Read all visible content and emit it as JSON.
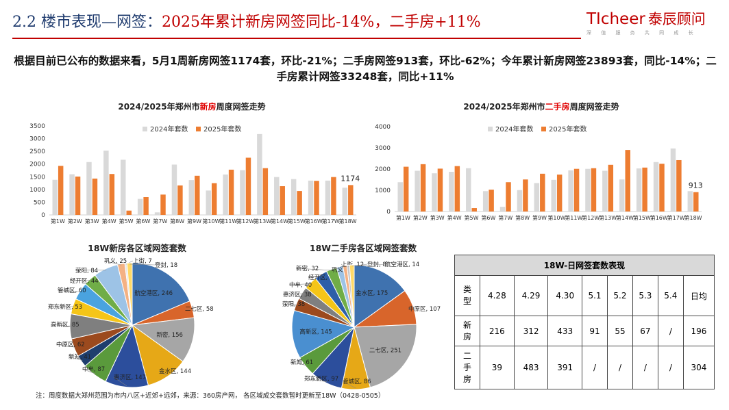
{
  "header": {
    "title_prefix": "2.2 楼市表现—网签：",
    "title_highlight": "2025年累计新房网签同比-14%，二手房+11%"
  },
  "logo": {
    "brand_latin": "TIcheer",
    "brand_cn": "泰辰顾问",
    "tagline": "深 值 服 务 共 同 成 长"
  },
  "summary": "根据目前已公布的数据来看，5月1周新房网签1174套，环比-21%；二手房网签913套，环比-62%；今年累计新房网签23893套，同比-14%；二手房累计网签33248套，同比+11%",
  "colors": {
    "series_2024": "#d9d9d9",
    "series_2025": "#ed7d31",
    "title_red": "#c00000"
  },
  "chart_data": [
    {
      "type": "bar",
      "title_prefix": "2024/2025年郑州市",
      "title_highlight": "新房",
      "title_suffix": "周度网签走势",
      "categories": [
        "第1W",
        "第2W",
        "第3W",
        "第4W",
        "第5W",
        "第6W",
        "第7W",
        "第8W",
        "第9W",
        "第10W",
        "第11W",
        "第12W",
        "第13W",
        "第14W",
        "第15W",
        "第16W",
        "第17W",
        "第18W"
      ],
      "series": [
        {
          "name": "2024年套数",
          "color": "#d9d9d9",
          "values": [
            1380,
            1600,
            2080,
            2530,
            2170,
            630,
            100,
            1980,
            1370,
            960,
            1590,
            1760,
            3180,
            1490,
            1410,
            1350,
            1350,
            1070
          ]
        },
        {
          "name": "2025年套数",
          "color": "#ed7d31",
          "values": [
            1930,
            1510,
            1430,
            1610,
            170,
            700,
            800,
            1160,
            1540,
            1250,
            1780,
            2250,
            1840,
            1130,
            940,
            1340,
            1490,
            1174
          ]
        }
      ],
      "data_labels": [
        {
          "series": "2025年套数",
          "category": "第18W",
          "text": "1174"
        }
      ],
      "yticks": [
        0,
        500,
        1000,
        1500,
        2000,
        2500,
        3000,
        3500
      ],
      "ylim": [
        0,
        3500
      ],
      "legend": "top"
    },
    {
      "type": "bar",
      "title_prefix": "2024/2025年郑州市",
      "title_highlight": "二手房",
      "title_suffix": "周度网签走势",
      "categories": [
        "第1W",
        "第2W",
        "第3W",
        "第4W",
        "第5W",
        "第6W",
        "第7W",
        "第8W",
        "第9W",
        "第10W",
        "第11W",
        "第12W",
        "第13W",
        "第14W",
        "第15W",
        "第16W",
        "第17W",
        "第18W"
      ],
      "series": [
        {
          "name": "2024年套数",
          "color": "#d9d9d9",
          "values": [
            1380,
            1920,
            1800,
            1870,
            2040,
            960,
            220,
            1010,
            1340,
            1490,
            1940,
            2010,
            1920,
            1510,
            2030,
            2330,
            2970,
            960
          ]
        },
        {
          "name": "2025年套数",
          "color": "#ed7d31",
          "values": [
            2110,
            2230,
            2020,
            2140,
            160,
            1030,
            1380,
            1510,
            1780,
            1740,
            2010,
            2040,
            2200,
            2900,
            2070,
            2250,
            2420,
            913
          ]
        }
      ],
      "data_labels": [
        {
          "series": "2025年套数",
          "category": "第18W",
          "text": "913"
        }
      ],
      "yticks": [
        0,
        1000,
        2000,
        3000,
        4000
      ],
      "ylim": [
        0,
        4000
      ],
      "legend": "top"
    },
    {
      "type": "pie",
      "title": "18W新房各区域网签套数",
      "slices": [
        {
          "label": "航空港区",
          "value": 246,
          "color": "#3f72af"
        },
        {
          "label": "二七区",
          "value": 58,
          "color": "#d8652b"
        },
        {
          "label": "新密",
          "value": 156,
          "color": "#a6a6a6"
        },
        {
          "label": "金水区",
          "value": 144,
          "color": "#e6a817"
        },
        {
          "label": "惠济区",
          "value": 147,
          "color": "#2c4e9c"
        },
        {
          "label": "中牟",
          "value": 87,
          "color": "#5a9a3c"
        },
        {
          "label": "新郑",
          "value": 41,
          "color": "#1f3e6e"
        },
        {
          "label": "中原区",
          "value": 62,
          "color": "#9c4a1e"
        },
        {
          "label": "高新区",
          "value": 85,
          "color": "#7f7f7f"
        },
        {
          "label": "郑东新区",
          "value": 53,
          "color": "#f5c518"
        },
        {
          "label": "管城区",
          "value": 60,
          "color": "#4aa3df"
        },
        {
          "label": "经开区",
          "value": 44,
          "color": "#70ad47"
        },
        {
          "label": "荥阳",
          "value": 84,
          "color": "#9dc3e6"
        },
        {
          "label": "巩义",
          "value": 25,
          "color": "#f4b183"
        },
        {
          "label": "上街",
          "value": 7,
          "color": "#e7e6e6"
        },
        {
          "label": "登封",
          "value": 18,
          "color": "#ffd966"
        }
      ]
    },
    {
      "type": "pie",
      "title": "18W二手房各区域网签套数",
      "slices": [
        {
          "label": "金水区",
          "value": 175,
          "color": "#3f72af"
        },
        {
          "label": "中原区",
          "value": 107,
          "color": "#d8652b"
        },
        {
          "label": "二七区",
          "value": 251,
          "color": "#a6a6a6"
        },
        {
          "label": "管城区",
          "value": 86,
          "color": "#e6a817"
        },
        {
          "label": "郑东新区",
          "value": 97,
          "color": "#2c4e9c"
        },
        {
          "label": "新郑",
          "value": 61,
          "color": "#5a9a3c"
        },
        {
          "label": "高新区",
          "value": 145,
          "color": "#4a8fd0"
        },
        {
          "label": "荥阳",
          "value": 38,
          "color": "#9c4a1e"
        },
        {
          "label": "惠济区",
          "value": 38,
          "color": "#7f7f7f"
        },
        {
          "label": "中牟",
          "value": 40,
          "color": "#f5c518"
        },
        {
          "label": "经开区",
          "value": 39,
          "color": "#2e5fa8"
        },
        {
          "label": "新密",
          "value": 32,
          "color": "#70ad47"
        },
        {
          "label": "巩义",
          "value": 19,
          "color": "#9dc3e6"
        },
        {
          "label": "上街",
          "value": 12,
          "color": "#f4b183"
        },
        {
          "label": "登封",
          "value": 8,
          "color": "#c9c9c9"
        },
        {
          "label": "航空港区",
          "value": 14,
          "color": "#ffd966"
        }
      ]
    }
  ],
  "daily_table": {
    "title": "18W-日网签套数表现",
    "type_header": "类型",
    "dates": [
      "4.28",
      "4.29",
      "4.30",
      "5.1",
      "5.2",
      "5.3",
      "5.4"
    ],
    "avg_header": "日均",
    "rows": [
      {
        "type": "新房",
        "values": [
          "216",
          "312",
          "433",
          "91",
          "55",
          "67",
          "/"
        ],
        "avg": "196"
      },
      {
        "type": "二手房",
        "values": [
          "39",
          "483",
          "391",
          "/",
          "/",
          "/",
          "/"
        ],
        "avg": "304"
      }
    ]
  },
  "footnote": "注：周度数据大郑州范围为市内八区+近郊+远郊，来源：360房产网， 各区域成交套数暂时更新至18W（0428-0505）"
}
